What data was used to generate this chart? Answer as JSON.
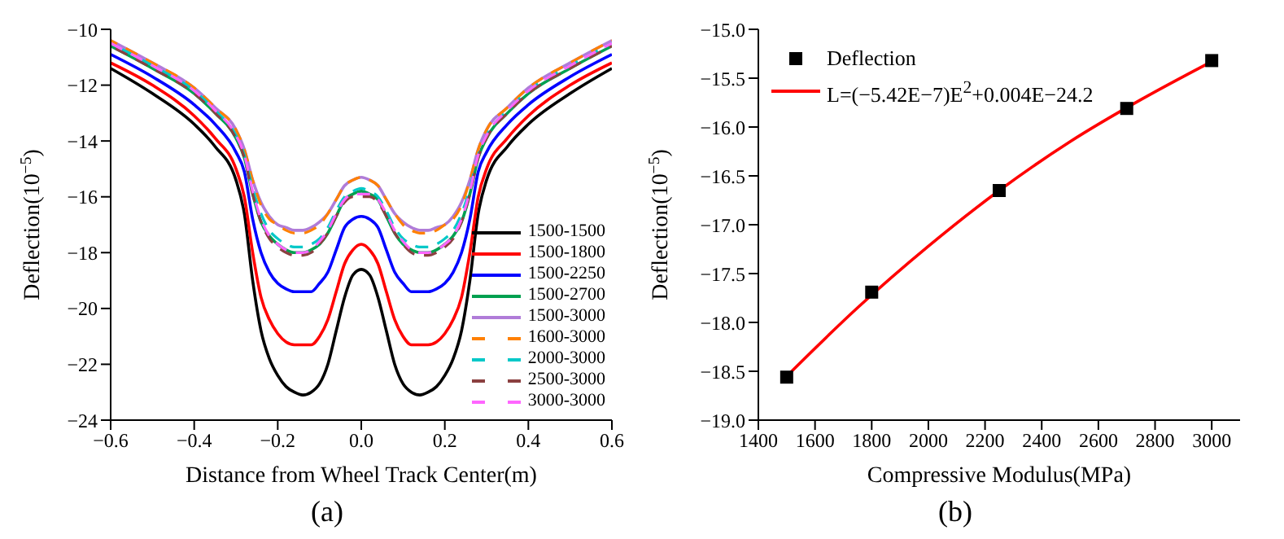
{
  "chart_data": [
    {
      "type": "line",
      "xlabel": "Distance from Wheel Track Center(m)",
      "ylabel": "Deflection(10$^{−5}$)",
      "x": [
        -0.6,
        -0.5,
        -0.4,
        -0.35,
        -0.3,
        -0.28,
        -0.26,
        -0.24,
        -0.22,
        -0.2,
        -0.18,
        -0.16,
        -0.14,
        -0.12,
        -0.1,
        -0.08,
        -0.06,
        -0.04,
        -0.02,
        0,
        0.02,
        0.04,
        0.06,
        0.08,
        0.1,
        0.12,
        0.14,
        0.16,
        0.18,
        0.2,
        0.22,
        0.24,
        0.26,
        0.28,
        0.3,
        0.35,
        0.4,
        0.5,
        0.6
      ],
      "series": [
        {
          "name": "1500-1500",
          "color": "#000000",
          "values": [
            -11.4,
            -12.3,
            -13.4,
            -14.2,
            -15.4,
            -16.6,
            -19.0,
            -20.8,
            -21.8,
            -22.4,
            -22.8,
            -23.0,
            -23.1,
            -23.0,
            -22.7,
            -22.0,
            -20.8,
            -19.6,
            -18.8,
            -18.6,
            -18.8,
            -19.6,
            -20.8,
            -22.0,
            -22.7,
            -23.0,
            -23.1,
            -23.0,
            -22.8,
            -22.4,
            -21.8,
            -20.8,
            -19.0,
            -16.6,
            -15.4,
            -14.2,
            -13.4,
            -12.3,
            -11.4
          ]
        },
        {
          "name": "1500-1800",
          "color": "#ff0000",
          "values": [
            -11.2,
            -12.0,
            -13.1,
            -13.9,
            -15.0,
            -16.0,
            -18.0,
            -19.6,
            -20.4,
            -20.9,
            -21.2,
            -21.3,
            -21.3,
            -21.3,
            -21.0,
            -20.4,
            -19.4,
            -18.4,
            -17.9,
            -17.7,
            -17.9,
            -18.4,
            -19.4,
            -20.4,
            -21.0,
            -21.3,
            -21.3,
            -21.3,
            -21.2,
            -20.9,
            -20.4,
            -19.6,
            -18.0,
            -16.0,
            -15.0,
            -13.9,
            -13.1,
            -12.0,
            -11.2
          ]
        },
        {
          "name": "1500-2250",
          "color": "#0000ff",
          "values": [
            -10.9,
            -11.7,
            -12.7,
            -13.4,
            -14.4,
            -15.1,
            -16.8,
            -18.0,
            -18.7,
            -19.1,
            -19.3,
            -19.4,
            -19.4,
            -19.4,
            -19.1,
            -18.7,
            -17.9,
            -17.1,
            -16.8,
            -16.7,
            -16.8,
            -17.1,
            -17.9,
            -18.7,
            -19.1,
            -19.4,
            -19.4,
            -19.4,
            -19.3,
            -19.1,
            -18.7,
            -18.0,
            -16.8,
            -15.1,
            -14.4,
            -13.4,
            -12.7,
            -11.7,
            -10.9
          ]
        },
        {
          "name": "1500-2700",
          "color": "#00a050",
          "values": [
            -10.6,
            -11.4,
            -12.3,
            -13.0,
            -13.9,
            -14.6,
            -15.9,
            -16.9,
            -17.4,
            -17.7,
            -17.9,
            -18.0,
            -18.0,
            -17.9,
            -17.7,
            -17.3,
            -16.7,
            -16.1,
            -15.9,
            -15.8,
            -15.9,
            -16.1,
            -16.7,
            -17.3,
            -17.7,
            -17.9,
            -18.0,
            -18.0,
            -17.9,
            -17.7,
            -17.4,
            -16.9,
            -15.9,
            -14.6,
            -13.9,
            -13.0,
            -12.3,
            -11.4,
            -10.6
          ]
        },
        {
          "name": "1500-3000",
          "color": "#b07cd8",
          "values": [
            -10.4,
            -11.2,
            -12.1,
            -12.8,
            -13.6,
            -14.3,
            -15.4,
            -16.2,
            -16.7,
            -17.0,
            -17.1,
            -17.2,
            -17.2,
            -17.1,
            -16.9,
            -16.6,
            -16.1,
            -15.6,
            -15.4,
            -15.3,
            -15.4,
            -15.6,
            -16.1,
            -16.6,
            -16.9,
            -17.1,
            -17.2,
            -17.2,
            -17.1,
            -17.0,
            -16.7,
            -16.2,
            -15.4,
            -14.3,
            -13.6,
            -12.8,
            -12.1,
            -11.2,
            -10.4
          ]
        },
        {
          "name": "1600-3000",
          "color": "#ff8000",
          "line_style": "dashed",
          "values": [
            -10.4,
            -11.2,
            -12.1,
            -12.8,
            -13.6,
            -14.3,
            -15.4,
            -16.3,
            -16.8,
            -17.0,
            -17.2,
            -17.3,
            -17.3,
            -17.2,
            -17.0,
            -16.6,
            -16.1,
            -15.6,
            -15.4,
            -15.3,
            -15.4,
            -15.6,
            -16.1,
            -16.6,
            -17.0,
            -17.2,
            -17.3,
            -17.3,
            -17.2,
            -17.0,
            -16.8,
            -16.3,
            -15.4,
            -14.3,
            -13.6,
            -12.8,
            -12.1,
            -11.2,
            -10.4
          ]
        },
        {
          "name": "2000-3000",
          "color": "#00c8c8",
          "line_style": "dashed",
          "values": [
            -10.5,
            -11.3,
            -12.2,
            -12.9,
            -13.8,
            -14.5,
            -15.7,
            -16.6,
            -17.2,
            -17.5,
            -17.7,
            -17.8,
            -17.8,
            -17.7,
            -17.5,
            -17.1,
            -16.5,
            -16.0,
            -15.8,
            -15.7,
            -15.8,
            -16.0,
            -16.5,
            -17.1,
            -17.5,
            -17.7,
            -17.8,
            -17.8,
            -17.7,
            -17.5,
            -17.2,
            -16.6,
            -15.7,
            -14.5,
            -13.8,
            -12.9,
            -12.2,
            -11.3,
            -10.5
          ]
        },
        {
          "name": "2500-3000",
          "color": "#8b4040",
          "line_style": "dashed",
          "values": [
            -10.6,
            -11.4,
            -12.3,
            -13.0,
            -13.9,
            -14.6,
            -15.9,
            -16.9,
            -17.5,
            -17.8,
            -18.0,
            -18.1,
            -18.1,
            -18.0,
            -17.7,
            -17.3,
            -16.7,
            -16.2,
            -16.0,
            -16.0,
            -16.0,
            -16.2,
            -16.7,
            -17.3,
            -17.7,
            -18.0,
            -18.1,
            -18.1,
            -18.0,
            -17.8,
            -17.5,
            -16.9,
            -15.9,
            -14.6,
            -13.9,
            -13.0,
            -12.3,
            -11.4,
            -10.6
          ]
        },
        {
          "name": "3000-3000",
          "color": "#ff66ff",
          "line_style": "dashed",
          "values": [
            -10.5,
            -11.3,
            -12.2,
            -12.9,
            -13.8,
            -14.5,
            -15.8,
            -16.8,
            -17.4,
            -17.7,
            -17.9,
            -18.0,
            -18.0,
            -17.9,
            -17.6,
            -17.2,
            -16.6,
            -16.1,
            -15.9,
            -15.9,
            -15.9,
            -16.1,
            -16.6,
            -17.2,
            -17.6,
            -17.9,
            -18.0,
            -18.0,
            -17.9,
            -17.7,
            -17.4,
            -16.8,
            -15.8,
            -14.5,
            -13.8,
            -12.9,
            -12.2,
            -11.3,
            -10.5
          ]
        }
      ],
      "xlim": [
        -0.6,
        0.6
      ],
      "xticks": [
        {
          "value": -0.6,
          "label": "−0.6"
        },
        {
          "value": -0.4,
          "label": "−0.4"
        },
        {
          "value": -0.2,
          "label": "−0.2"
        },
        {
          "value": 0,
          "label": "0.0"
        },
        {
          "value": 0.2,
          "label": "0.2"
        },
        {
          "value": 0.4,
          "label": "0.4"
        },
        {
          "value": 0.6,
          "label": "0.6"
        }
      ],
      "ylim": [
        -24,
        -10
      ],
      "yticks": [
        {
          "value": -24,
          "label": "−24"
        },
        {
          "value": -22,
          "label": "−22"
        },
        {
          "value": -20,
          "label": "−20"
        },
        {
          "value": -18,
          "label": "−18"
        },
        {
          "value": -16,
          "label": "−16"
        },
        {
          "value": -14,
          "label": "−14"
        },
        {
          "value": -12,
          "label": "−12"
        },
        {
          "value": -10,
          "label": "−10"
        }
      ],
      "legend": "bottom right",
      "grid": false,
      "annotations": [
        "(a)"
      ]
    },
    {
      "type": "scatter",
      "xlabel": "Compressive Modulus(MPa)",
      "ylabel": "Deflection(10$^{−5}$)",
      "series": [
        {
          "name": "Deflection",
          "type": "scatter",
          "color": "#000000",
          "marker": "square",
          "x": [
            1500,
            1800,
            2250,
            2700,
            3000
          ],
          "values": [
            -18.56,
            -17.69,
            -16.65,
            -15.81,
            -15.32
          ]
        },
        {
          "name": "L=(−5.42E−7)E$^{2}$+0.004E−24.2",
          "type": "line",
          "color": "#ff0000",
          "x": [
            1500,
            1750,
            2000,
            2250,
            2500,
            2750,
            3000
          ],
          "values": [
            -18.55,
            -17.85,
            -17.22,
            -16.65,
            -16.15,
            -15.72,
            -15.33
          ]
        }
      ],
      "xlim": [
        1400,
        3100
      ],
      "xticks": [
        1400,
        1600,
        1800,
        2000,
        2200,
        2400,
        2600,
        2800,
        3000
      ],
      "ylim": [
        -19,
        -15
      ],
      "yticks": [
        {
          "value": -19,
          "label": "−19.0"
        },
        {
          "value": -18.5,
          "label": "−18.5"
        },
        {
          "value": -18,
          "label": "−18.0"
        },
        {
          "value": -17.5,
          "label": "−17.5"
        },
        {
          "value": -17,
          "label": "−17.0"
        },
        {
          "value": -16.5,
          "label": "−16.5"
        },
        {
          "value": -16,
          "label": "−16.0"
        },
        {
          "value": -15.5,
          "label": "−15.5"
        },
        {
          "value": -15,
          "label": "−15.0"
        }
      ],
      "legend": "top left",
      "grid": false,
      "annotations": [
        "(b)"
      ]
    }
  ]
}
